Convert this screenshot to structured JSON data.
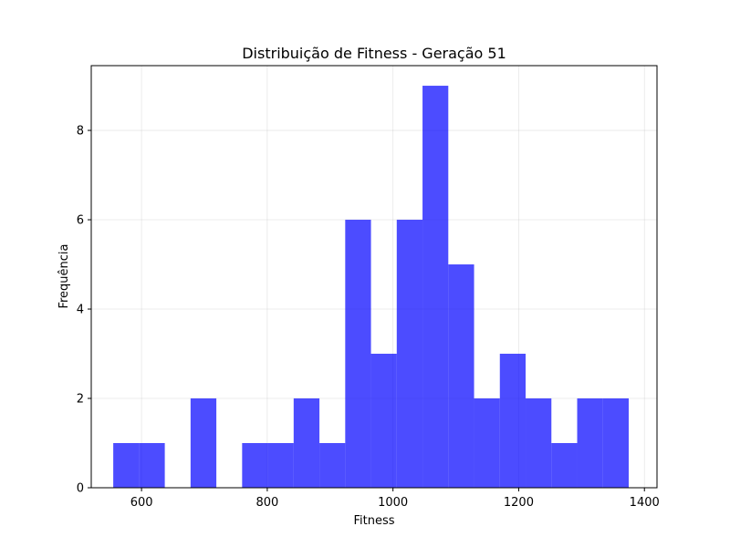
{
  "chart_data": {
    "type": "bar",
    "title": "Distribuição de Fitness - Geração 51",
    "xlabel": "Fitness",
    "ylabel": "Frequência",
    "xlim": [
      520,
      1420
    ],
    "ylim": [
      0,
      9.45
    ],
    "xticks": [
      600,
      800,
      1000,
      1200,
      1400
    ],
    "yticks": [
      0,
      2,
      4,
      6,
      8
    ],
    "grid": true,
    "bar_color": "#0000ff",
    "bar_opacity": 0.7,
    "bin_edges": [
      555,
      596,
      637,
      678,
      719,
      760,
      801,
      842,
      883,
      924,
      965,
      1006,
      1047,
      1088,
      1129,
      1170,
      1211,
      1252,
      1293,
      1334,
      1375
    ],
    "values": [
      1,
      1,
      0,
      2,
      0,
      1,
      1,
      2,
      1,
      6,
      3,
      6,
      9,
      5,
      2,
      3,
      2,
      1,
      2,
      2
    ]
  }
}
